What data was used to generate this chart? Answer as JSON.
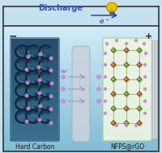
{
  "fig_bg": "#c5e0ee",
  "beaker_fill": "#aed4e8",
  "beaker_gradient_top": "#d0eaf8",
  "beaker_gradient_bot": "#7ab8d4",
  "wire_color": "#333333",
  "title": "Discharge",
  "title_color": "#3355bb",
  "title_fontsize": 7,
  "electron_label": "e",
  "electron_color": "#2233aa",
  "minus_color": "#222222",
  "plus_color": "#222222",
  "anode_dark": "#1e3f5a",
  "anode_mid": "#2e5878",
  "anode_light": "#4a7fa0",
  "anode_tube_dark": "#152d42",
  "anode_label": "Hard Carbon",
  "cathode_label": "NFPS@rGO",
  "cathode_bg": "#e8f5e0",
  "cathode_green1": "#7dba3a",
  "cathode_green2": "#9acc55",
  "cathode_brown1": "#c27c30",
  "cathode_brown2": "#a86020",
  "sep_color": "#c8d4dc",
  "na_dot_color": "#cc88cc",
  "na_label": "Na+",
  "bulb_yellow": "#f5c000",
  "bulb_outline": "#888800",
  "plate_color": "#b0b8c0",
  "plate_color2": "#d0d8e0",
  "label_color": "#1a1a1a",
  "connect_color": "#888844"
}
